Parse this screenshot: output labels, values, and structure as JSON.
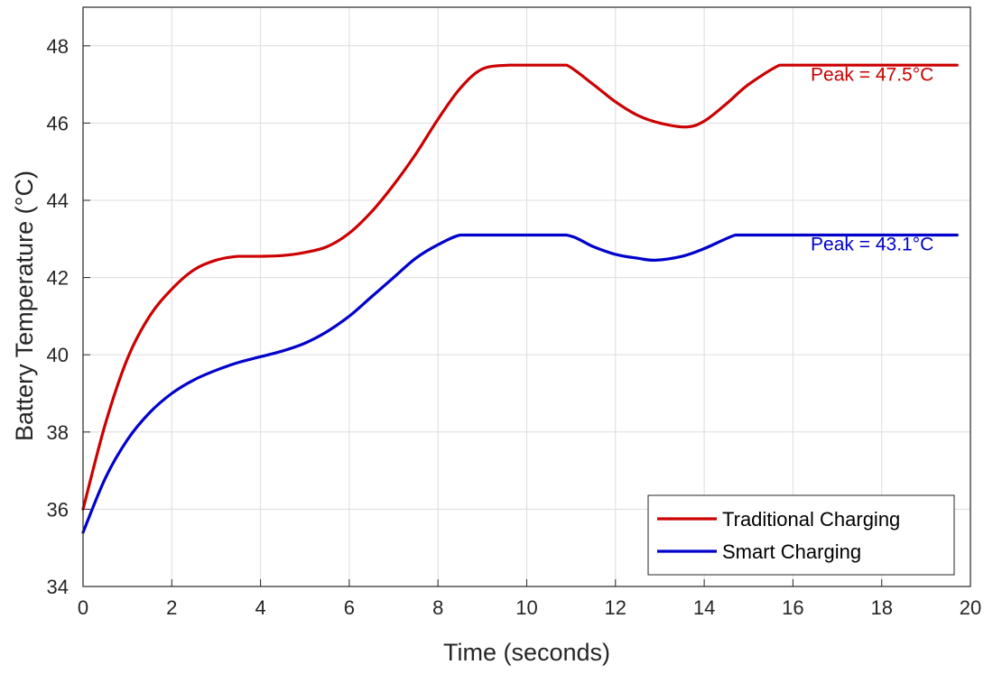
{
  "chart_data": {
    "type": "line",
    "title": "",
    "xlabel": "Time (seconds)",
    "ylabel": "Battery Temperature (°C)",
    "xlim": [
      0,
      20
    ],
    "ylim": [
      34,
      49
    ],
    "xticks": [
      "0",
      "2",
      "4",
      "6",
      "8",
      "10",
      "12",
      "14",
      "16",
      "18",
      "20"
    ],
    "yticks": [
      "34",
      "36",
      "38",
      "40",
      "42",
      "44",
      "46",
      "48"
    ],
    "grid": true,
    "legend_position": "bottom-right",
    "series": [
      {
        "name": "Traditional Charging",
        "color": "#cc0000",
        "x": [
          0,
          0.5,
          1,
          1.5,
          2,
          2.5,
          3,
          3.5,
          4,
          4.5,
          5,
          5.5,
          6,
          6.5,
          7,
          7.5,
          8,
          8.5,
          9,
          9.6,
          10,
          10.5,
          10.9,
          11.5,
          12,
          12.5,
          13,
          13.6,
          14,
          14.5,
          15,
          15.7,
          16,
          17,
          18,
          19,
          19.7
        ],
        "y": [
          36.0,
          38.2,
          39.9,
          41.0,
          41.7,
          42.2,
          42.45,
          42.55,
          42.55,
          42.57,
          42.65,
          42.8,
          43.15,
          43.7,
          44.4,
          45.2,
          46.1,
          46.9,
          47.4,
          47.5,
          47.5,
          47.5,
          47.5,
          47.0,
          46.55,
          46.2,
          46.0,
          45.9,
          46.05,
          46.5,
          47.0,
          47.5,
          47.5,
          47.5,
          47.5,
          47.5,
          47.5
        ]
      },
      {
        "name": "Smart Charging",
        "color": "#0000cc",
        "x": [
          0,
          0.5,
          1,
          1.5,
          2,
          2.5,
          3,
          3.5,
          4,
          4.5,
          5,
          5.5,
          6,
          6.5,
          7,
          7.5,
          8,
          8.5,
          9,
          10,
          10.9,
          11.5,
          12,
          12.5,
          12.9,
          13.5,
          14,
          14.7,
          15,
          16,
          17,
          18,
          19,
          19.7
        ],
        "y": [
          35.4,
          36.8,
          37.8,
          38.5,
          39.0,
          39.35,
          39.6,
          39.8,
          39.95,
          40.1,
          40.3,
          40.6,
          41.0,
          41.5,
          42.0,
          42.5,
          42.85,
          43.1,
          43.1,
          43.1,
          43.1,
          42.8,
          42.6,
          42.5,
          42.45,
          42.55,
          42.75,
          43.1,
          43.1,
          43.1,
          43.1,
          43.1,
          43.1,
          43.1
        ]
      }
    ],
    "annotations": [
      {
        "text": "Peak = 47.5°C",
        "x": 16.4,
        "y": 47.1,
        "color": "#cc0000"
      },
      {
        "text": "Peak = 43.1°C",
        "x": 16.4,
        "y": 42.7,
        "color": "#0000cc"
      }
    ]
  }
}
